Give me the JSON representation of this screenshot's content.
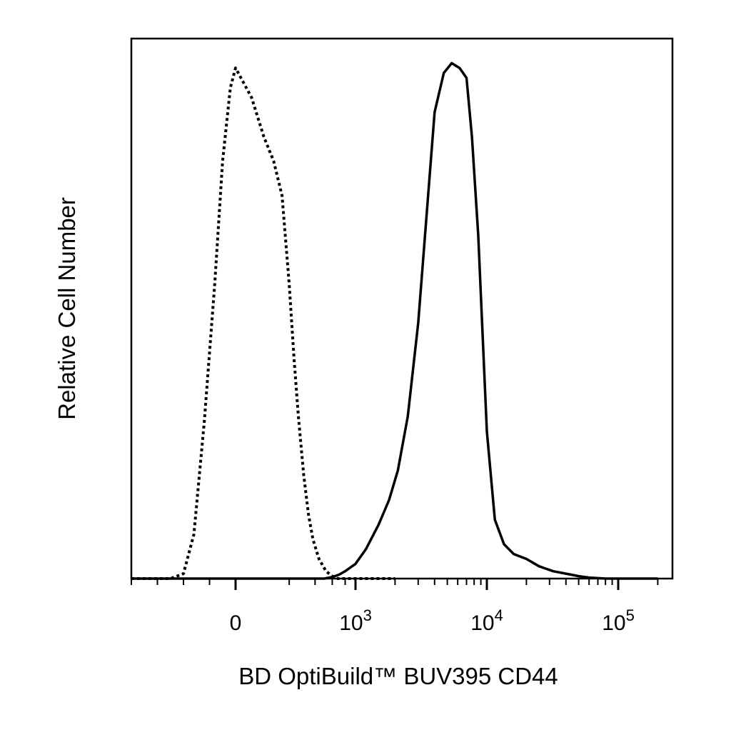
{
  "chart_data": {
    "type": "line",
    "xlabel": "BD OptiBuild™ BUV395 CD44",
    "ylabel": "Relative Cell Number",
    "x_scale": "biexponential",
    "xlim": [
      -800,
      200000
    ],
    "ylim": [
      0,
      1.1
    ],
    "grid": false,
    "x_tick_labels": [
      {
        "value": 0,
        "base": "0",
        "exp": ""
      },
      {
        "value": 1000,
        "base": "10",
        "exp": "3"
      },
      {
        "value": 10000,
        "base": "10",
        "exp": "4"
      },
      {
        "value": 100000,
        "base": "10",
        "exp": "5"
      }
    ],
    "series": [
      {
        "style": "dotted",
        "color": "#000000",
        "x": [
          -800,
          -500,
          -400,
          -320,
          -240,
          -160,
          -100,
          -40,
          0,
          40,
          80,
          120,
          160,
          200,
          230,
          260,
          300,
          340,
          380,
          440,
          520,
          600,
          680,
          800,
          1000,
          2000
        ],
        "y": [
          0,
          0,
          0.01,
          0.09,
          0.32,
          0.6,
          0.85,
          1.0,
          1.04,
          0.98,
          0.9,
          0.85,
          0.78,
          0.6,
          0.45,
          0.33,
          0.21,
          0.13,
          0.08,
          0.04,
          0.015,
          0.005,
          0,
          0,
          0,
          0
        ]
      },
      {
        "style": "solid",
        "color": "#000000",
        "x": [
          -800,
          500,
          600,
          700,
          800,
          1000,
          1200,
          1500,
          1800,
          2100,
          2500,
          3000,
          3500,
          4000,
          4700,
          5400,
          6200,
          7000,
          7700,
          8600,
          10000,
          11500,
          13500,
          16000,
          20000,
          25000,
          32000,
          40000,
          50000,
          60000,
          80000,
          200000
        ],
        "y": [
          0,
          0,
          0.003,
          0.008,
          0.015,
          0.03,
          0.06,
          0.11,
          0.16,
          0.22,
          0.33,
          0.52,
          0.75,
          0.95,
          1.03,
          1.05,
          1.04,
          1.02,
          0.9,
          0.7,
          0.3,
          0.12,
          0.07,
          0.05,
          0.04,
          0.025,
          0.015,
          0.01,
          0.005,
          0.002,
          0,
          0
        ]
      }
    ]
  }
}
